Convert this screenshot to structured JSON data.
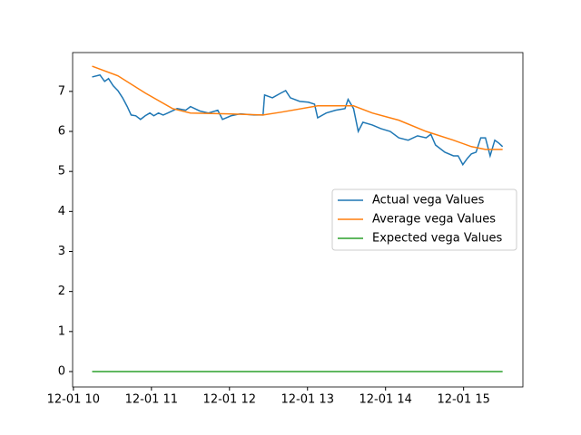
{
  "chart_data": {
    "type": "line",
    "xlim": [
      9.99,
      15.76
    ],
    "ylim": [
      -0.385,
      7.97
    ],
    "xticks": [
      {
        "value": 10,
        "label": "12-01 10"
      },
      {
        "value": 11,
        "label": "12-01 11"
      },
      {
        "value": 12,
        "label": "12-01 12"
      },
      {
        "value": 13,
        "label": "12-01 13"
      },
      {
        "value": 14,
        "label": "12-01 14"
      },
      {
        "value": 15,
        "label": "12-01 15"
      }
    ],
    "yticks": [
      0,
      1,
      2,
      3,
      4,
      5,
      6,
      7
    ],
    "grid": false,
    "legend": "center right",
    "series": [
      {
        "name": "Actual vega Values",
        "color": "#1f77b4",
        "x": [
          10.24,
          10.34,
          10.4,
          10.45,
          10.51,
          10.57,
          10.63,
          10.69,
          10.74,
          10.8,
          10.86,
          10.92,
          10.98,
          11.03,
          11.09,
          11.15,
          11.21,
          11.33,
          11.44,
          11.5,
          11.62,
          11.73,
          11.85,
          11.91,
          12.02,
          12.14,
          12.31,
          12.43,
          12.45,
          12.55,
          12.66,
          12.72,
          12.78,
          12.9,
          13.01,
          13.09,
          13.13,
          13.24,
          13.36,
          13.48,
          13.52,
          13.59,
          13.65,
          13.71,
          13.83,
          13.94,
          14.06,
          14.17,
          14.29,
          14.41,
          14.52,
          14.58,
          14.64,
          14.76,
          14.87,
          14.93,
          14.99,
          15.05,
          15.1,
          15.16,
          15.22,
          15.28,
          15.34,
          15.4,
          15.45,
          15.5
        ],
        "values": [
          7.36,
          7.41,
          7.25,
          7.32,
          7.14,
          7.02,
          6.84,
          6.62,
          6.41,
          6.39,
          6.3,
          6.39,
          6.46,
          6.39,
          6.46,
          6.41,
          6.46,
          6.57,
          6.53,
          6.62,
          6.51,
          6.46,
          6.53,
          6.3,
          6.39,
          6.44,
          6.41,
          6.41,
          6.91,
          6.84,
          6.96,
          7.02,
          6.84,
          6.75,
          6.73,
          6.68,
          6.34,
          6.46,
          6.53,
          6.57,
          6.8,
          6.57,
          6.0,
          6.23,
          6.16,
          6.07,
          6.0,
          5.84,
          5.78,
          5.89,
          5.84,
          5.93,
          5.66,
          5.48,
          5.39,
          5.39,
          5.17,
          5.33,
          5.44,
          5.48,
          5.84,
          5.84,
          5.39,
          5.78,
          5.71,
          5.62
        ]
      },
      {
        "name": "Average vega Values",
        "color": "#ff7f0e",
        "x": [
          10.24,
          10.57,
          10.92,
          11.27,
          11.5,
          11.97,
          12.43,
          12.66,
          13.13,
          13.59,
          13.83,
          14.17,
          14.52,
          14.87,
          15.1,
          15.28,
          15.5
        ],
        "values": [
          7.63,
          7.39,
          6.96,
          6.57,
          6.46,
          6.44,
          6.41,
          6.48,
          6.64,
          6.64,
          6.46,
          6.28,
          6.0,
          5.78,
          5.62,
          5.55,
          5.55
        ]
      },
      {
        "name": "Expected vega Values",
        "color": "#2ca02c",
        "x": [
          10.24,
          15.5
        ],
        "values": [
          0,
          0
        ]
      }
    ]
  }
}
